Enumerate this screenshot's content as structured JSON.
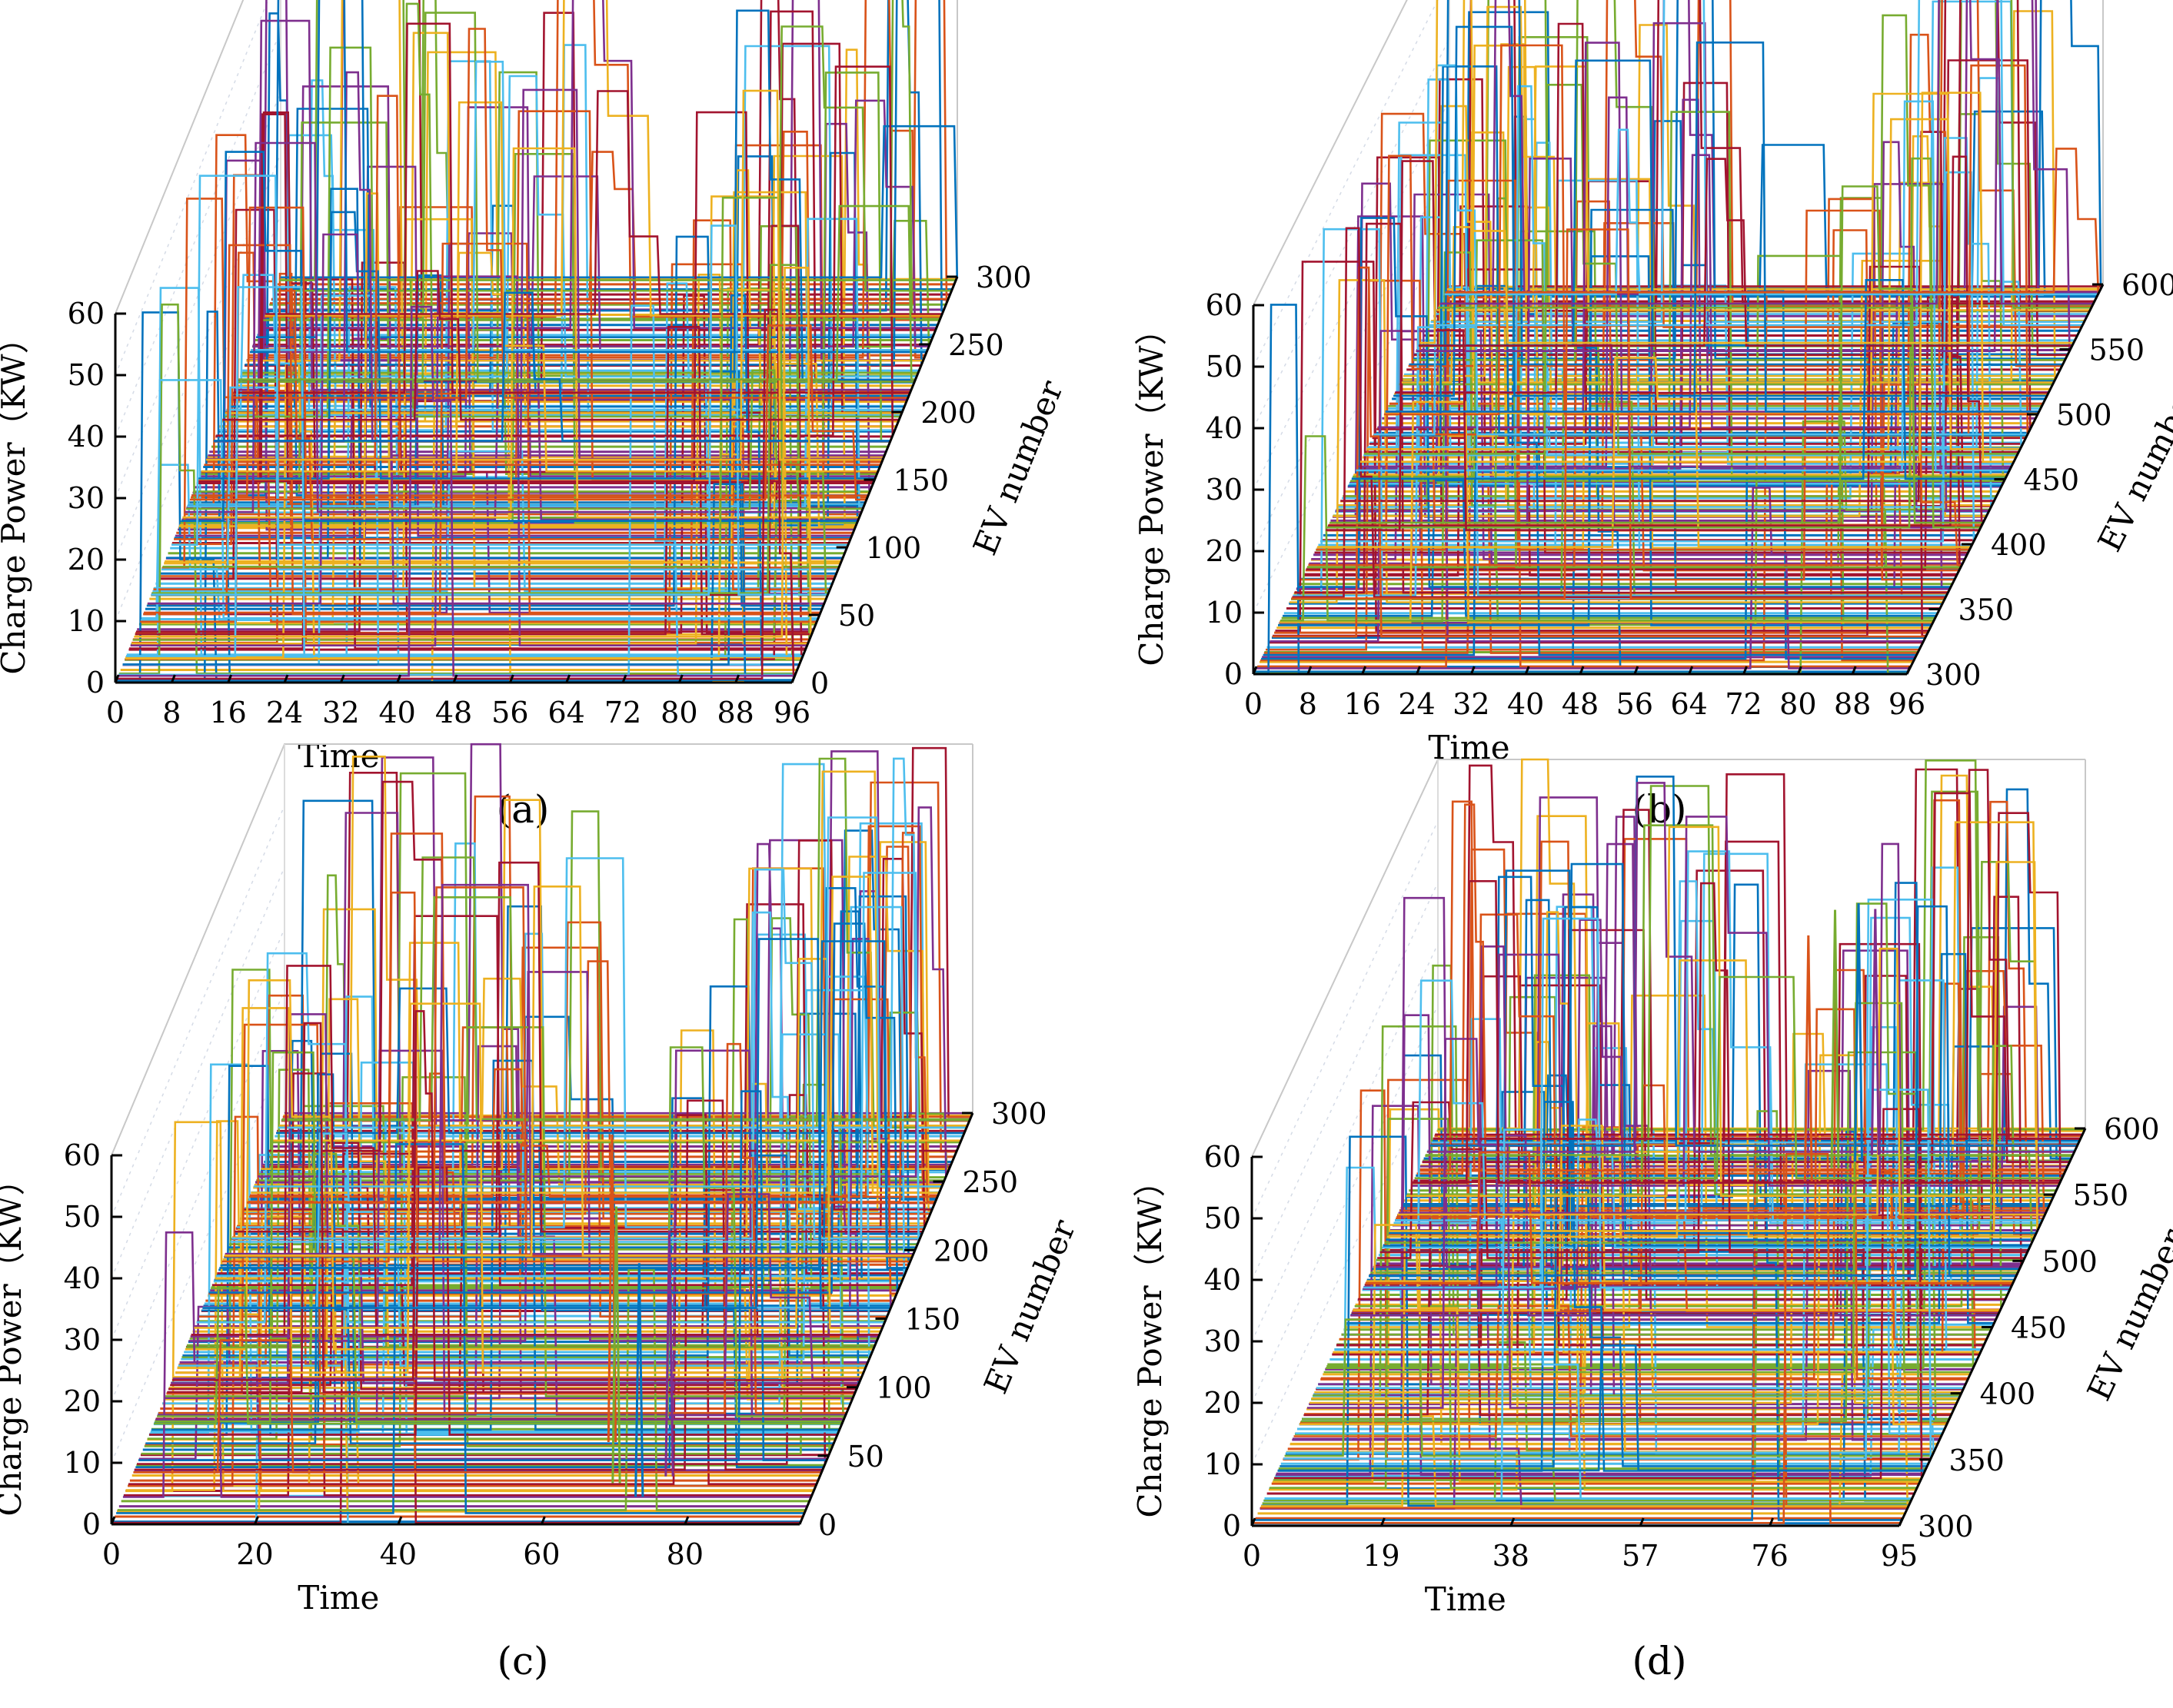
{
  "figure": {
    "panels": [
      {
        "label": "(a)",
        "chart_data": {
          "type": "3d-line",
          "title": "",
          "xlabel": "Time",
          "ylabel": "Charge Power（KW）",
          "zlabel": "EV number",
          "x_ticks": [
            "0",
            "8",
            "16",
            "24",
            "32",
            "40",
            "48",
            "56",
            "64",
            "72",
            "80",
            "88",
            "96"
          ],
          "y_ticks": [
            "0",
            "10",
            "20",
            "30",
            "40",
            "50",
            "60"
          ],
          "z_ticks": [
            "0",
            "50",
            "100",
            "150",
            "200",
            "250",
            "300"
          ],
          "xlim": [
            0,
            96
          ],
          "ylim": [
            0,
            60
          ],
          "zlim": [
            0,
            300
          ],
          "series_count": 300,
          "charging_windows": [
            {
              "start": 2,
              "end": 56,
              "peak_kw": 60
            },
            {
              "start": 70,
              "end": 96,
              "peak_kw": 60
            }
          ],
          "isolated_spikes": []
        }
      },
      {
        "label": "(b)",
        "chart_data": {
          "type": "3d-line",
          "title": "",
          "xlabel": "Time",
          "ylabel": "Charge Power（KW）",
          "zlabel": "EV number",
          "x_ticks": [
            "0",
            "8",
            "16",
            "24",
            "32",
            "40",
            "48",
            "56",
            "64",
            "72",
            "80",
            "88",
            "96"
          ],
          "y_ticks": [
            "0",
            "10",
            "20",
            "30",
            "40",
            "50",
            "60"
          ],
          "z_ticks": [
            "300",
            "350",
            "400",
            "450",
            "500",
            "550",
            "600"
          ],
          "xlim": [
            0,
            96
          ],
          "ylim": [
            0,
            60
          ],
          "zlim": [
            300,
            600
          ],
          "series_count": 300,
          "charging_windows": [
            {
              "start": 2,
              "end": 56,
              "peak_kw": 60
            },
            {
              "start": 70,
              "end": 96,
              "peak_kw": 60
            }
          ],
          "isolated_spikes": []
        }
      },
      {
        "label": "(c)",
        "chart_data": {
          "type": "3d-line",
          "title": "",
          "xlabel": "Time",
          "ylabel": "Charge Power（KW）",
          "zlabel": "EV number",
          "x_ticks": [
            "0",
            "20",
            "40",
            "60",
            "80"
          ],
          "y_ticks": [
            "0",
            "10",
            "20",
            "30",
            "40",
            "50",
            "60"
          ],
          "z_ticks": [
            "0",
            "50",
            "100",
            "150",
            "200",
            "250",
            "300"
          ],
          "xlim": [
            0,
            96
          ],
          "ylim": [
            0,
            60
          ],
          "zlim": [
            0,
            300
          ],
          "series_count": 300,
          "charging_windows": [
            {
              "start": 2,
              "end": 56,
              "peak_kw": 60
            },
            {
              "start": 70,
              "end": 96,
              "peak_kw": 60
            }
          ],
          "isolated_spikes": [
            {
              "t": 65,
              "ev": 60,
              "kw": 50
            },
            {
              "t": 68,
              "ev": 30,
              "kw": 45
            },
            {
              "t": 72,
              "ev": 20,
              "kw": 38
            },
            {
              "t": 75,
              "ev": 35,
              "kw": 40
            }
          ]
        }
      },
      {
        "label": "(d)",
        "chart_data": {
          "type": "3d-line",
          "title": "",
          "xlabel": "Time",
          "ylabel": "Charge Power（KW）",
          "zlabel": "EV number",
          "x_ticks": [
            "0",
            "19",
            "38",
            "57",
            "76",
            "95"
          ],
          "y_ticks": [
            "0",
            "10",
            "20",
            "30",
            "40",
            "50",
            "60"
          ],
          "z_ticks": [
            "300",
            "350",
            "400",
            "450",
            "500",
            "550",
            "600"
          ],
          "xlim": [
            0,
            95
          ],
          "ylim": [
            0,
            60
          ],
          "zlim": [
            300,
            600
          ],
          "series_count": 300,
          "charging_windows": [
            {
              "start": 2,
              "end": 56,
              "peak_kw": 60
            },
            {
              "start": 70,
              "end": 95,
              "peak_kw": 60
            }
          ],
          "isolated_spikes": [
            {
              "t": 58,
              "ev": 560,
              "kw": 40
            },
            {
              "t": 61,
              "ev": 570,
              "kw": 42
            },
            {
              "t": 64,
              "ev": 575,
              "kw": 42
            },
            {
              "t": 66,
              "ev": 580,
              "kw": 40
            }
          ]
        }
      }
    ],
    "palette": [
      "#0072BD",
      "#D95319",
      "#EDB120",
      "#7E2F8E",
      "#77AC30",
      "#4DBEEE",
      "#A2142F"
    ]
  }
}
